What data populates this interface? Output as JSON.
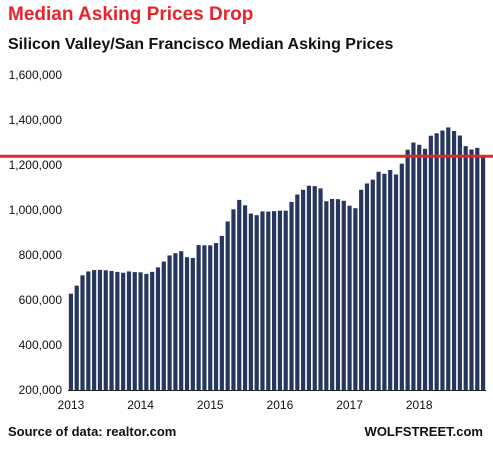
{
  "title": "Median Asking Prices Drop",
  "subtitle": "Silicon Valley/San Francisco Median Asking Prices",
  "source": "Source of data: realtor.com",
  "brand": "WOLFSTREET.com",
  "colors": {
    "bar": "#26375f",
    "reference_line": "#e8232a",
    "title": "#e8232a",
    "axis": "#222222"
  },
  "chart_data": {
    "type": "bar",
    "title": "Median Asking Prices Drop",
    "subtitle": "Silicon Valley/San Francisco Median Asking Prices",
    "xlabel": "",
    "ylabel": "",
    "ylim": [
      200000,
      1600000
    ],
    "yticks": [
      200000,
      400000,
      600000,
      800000,
      1000000,
      1200000,
      1400000,
      1600000
    ],
    "ytick_labels": [
      "200,000",
      "400,000",
      "600,000",
      "800,000",
      "1,000,000",
      "1,200,000",
      "1,400,000",
      "1,600,000"
    ],
    "xtick_labels": [
      "2013",
      "2014",
      "2015",
      "2016",
      "2017",
      "2018"
    ],
    "xtick_start_index": [
      0,
      12,
      24,
      36,
      48,
      60
    ],
    "grid": false,
    "legend": "none",
    "start": "2013-01",
    "reference_line": 1239000,
    "values": [
      628000,
      664000,
      710000,
      727000,
      733000,
      734000,
      732000,
      729000,
      725000,
      721000,
      727000,
      724000,
      723000,
      716000,
      725000,
      745000,
      771000,
      798000,
      808000,
      817000,
      790000,
      787000,
      844000,
      843000,
      843000,
      853000,
      885000,
      949000,
      1003000,
      1045000,
      1021000,
      984000,
      977000,
      994000,
      993000,
      995000,
      997000,
      997000,
      1036000,
      1069000,
      1090000,
      1108000,
      1106000,
      1096000,
      1039000,
      1049000,
      1048000,
      1041000,
      1019000,
      1008000,
      1090000,
      1118000,
      1135000,
      1170000,
      1161000,
      1178000,
      1158000,
      1206000,
      1268000,
      1300000,
      1290000,
      1272000,
      1330000,
      1341000,
      1353000,
      1367000,
      1351000,
      1331000,
      1284000,
      1269000,
      1276000,
      1237000
    ]
  }
}
